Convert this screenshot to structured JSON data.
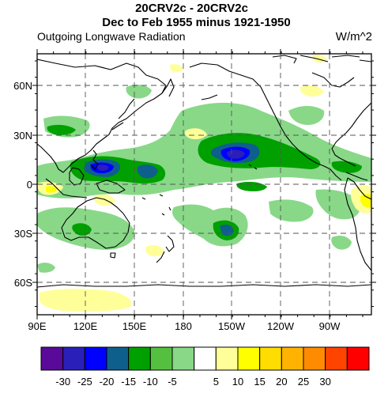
{
  "title_line1": "20CRV2c - 20CRV2c",
  "title_line2": "Dec to Feb 1955 minus 1921-1950",
  "left_subtitle": "Outgoing Longwave Radiation",
  "right_subtitle": "W/m^2",
  "lat_labels": [
    "60N",
    "30N",
    "0",
    "30S",
    "60S"
  ],
  "lon_labels": [
    "90E",
    "120E",
    "150E",
    "180",
    "150W",
    "120W",
    "90W"
  ],
  "colorbar": {
    "colors": [
      "#5a0a99",
      "#2a1fb8",
      "#0000ff",
      "#0f5f8c",
      "#00a000",
      "#55c040",
      "#88d888",
      "#ffffff",
      "#ffff99",
      "#ffff00",
      "#ffdd00",
      "#ffb300",
      "#ff8c00",
      "#ff4400",
      "#ff0000"
    ],
    "labels": [
      "-30",
      "-25",
      "-20",
      "-15",
      "-10",
      "-5",
      "5",
      "10",
      "15",
      "20",
      "25",
      "30"
    ]
  },
  "palette": {
    "light_green": "#88d888",
    "green": "#00a000",
    "teal": "#0f5f8c",
    "blue": "#0000ff",
    "dark_blue": "#2a1fb8",
    "light_yellow": "#ffff99",
    "yellow": "#ffff00"
  }
}
